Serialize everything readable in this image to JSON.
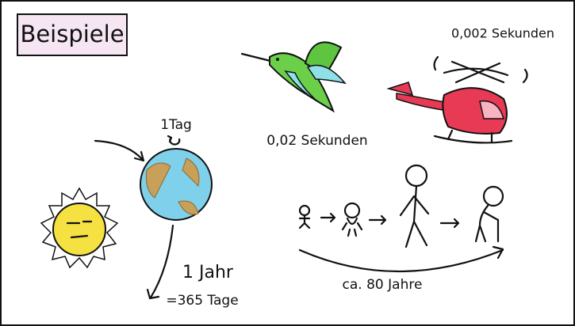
{
  "title": "Beispiele",
  "helicopter": {
    "label": "0,002 Sekunden"
  },
  "hummingbird": {
    "label": "0,02 Sekunden"
  },
  "earth": {
    "rotation": "1Tag",
    "orbit": "1 Jahr",
    "orbit_days": "=365 Tage"
  },
  "human": {
    "lifespan": "ca. 80 Jahre"
  }
}
